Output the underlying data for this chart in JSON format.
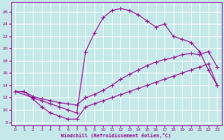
{
  "xlabel": "Windchill (Refroidissement éolien,°C)",
  "xlim": [
    -0.5,
    23.5
  ],
  "ylim": [
    7.5,
    27.5
  ],
  "yticks": [
    8,
    10,
    12,
    14,
    16,
    18,
    20,
    22,
    24,
    26
  ],
  "xticks": [
    0,
    1,
    2,
    3,
    4,
    5,
    6,
    7,
    8,
    9,
    10,
    11,
    12,
    13,
    14,
    15,
    16,
    17,
    18,
    19,
    20,
    21,
    22,
    23
  ],
  "bg_color": "#c5e8e8",
  "line_color": "#990099",
  "grid_color": "#ffffff",
  "line1_x": [
    0,
    1,
    2,
    3,
    4,
    5,
    6,
    7,
    8,
    9,
    10,
    11,
    12,
    13,
    14,
    15,
    16,
    17,
    18,
    19,
    20,
    21,
    22,
    23
  ],
  "line1_y": [
    13.0,
    13.0,
    11.8,
    10.5,
    9.5,
    9.0,
    8.5,
    8.5,
    10.5,
    11.0,
    11.5,
    12.0,
    12.5,
    13.0,
    13.5,
    14.0,
    14.5,
    15.0,
    15.5,
    16.0,
    16.5,
    17.0,
    17.5,
    14.0
  ],
  "line2_x": [
    0,
    1,
    2,
    3,
    4,
    5,
    6,
    7,
    8,
    9,
    10,
    11,
    12,
    13,
    14,
    15,
    16,
    17,
    18,
    19,
    20,
    21,
    22,
    23
  ],
  "line2_y": [
    13.0,
    13.0,
    12.2,
    11.8,
    11.5,
    11.2,
    11.0,
    10.8,
    12.0,
    12.5,
    13.2,
    14.0,
    15.0,
    15.8,
    16.5,
    17.2,
    17.8,
    18.2,
    18.5,
    19.0,
    19.2,
    19.0,
    19.5,
    17.0
  ],
  "line3_x": [
    0,
    2,
    3,
    4,
    5,
    6,
    7,
    8,
    9,
    10,
    11,
    12,
    13,
    14,
    15,
    16,
    17,
    18,
    19,
    20,
    21,
    22,
    23
  ],
  "line3_y": [
    13.0,
    12.0,
    11.5,
    11.0,
    10.5,
    10.0,
    9.5,
    19.5,
    22.5,
    25.0,
    26.2,
    26.5,
    26.2,
    25.5,
    24.5,
    23.5,
    24.0,
    22.0,
    21.5,
    21.0,
    19.5,
    16.5,
    14.0
  ]
}
